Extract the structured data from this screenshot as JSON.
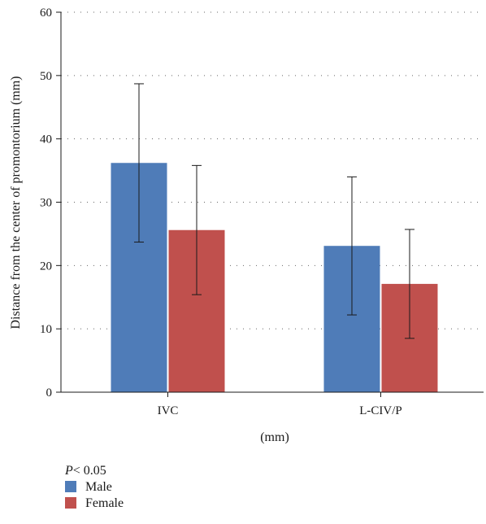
{
  "chart_data": {
    "type": "bar",
    "categories": [
      "IVC",
      "L-CIV/P"
    ],
    "series": [
      {
        "name": "Male",
        "values": [
          36.2,
          23.1
        ],
        "error": [
          12.5,
          10.9
        ],
        "color": "#4f7cb8"
      },
      {
        "name": "Female",
        "values": [
          25.6,
          17.1
        ],
        "error": [
          10.2,
          8.6
        ],
        "color": "#c0504d"
      }
    ],
    "xlabel": "(mm)",
    "ylabel": "Distance from the center of promontorium (mm)",
    "ylim": [
      0,
      60
    ],
    "yticks": [
      0,
      10,
      20,
      30,
      40,
      50,
      60
    ],
    "grid": "horizontal dotted",
    "legend_position": "bottom-left"
  },
  "annotation": {
    "p_symbol": "P",
    "p_rest": " < 0.05"
  }
}
